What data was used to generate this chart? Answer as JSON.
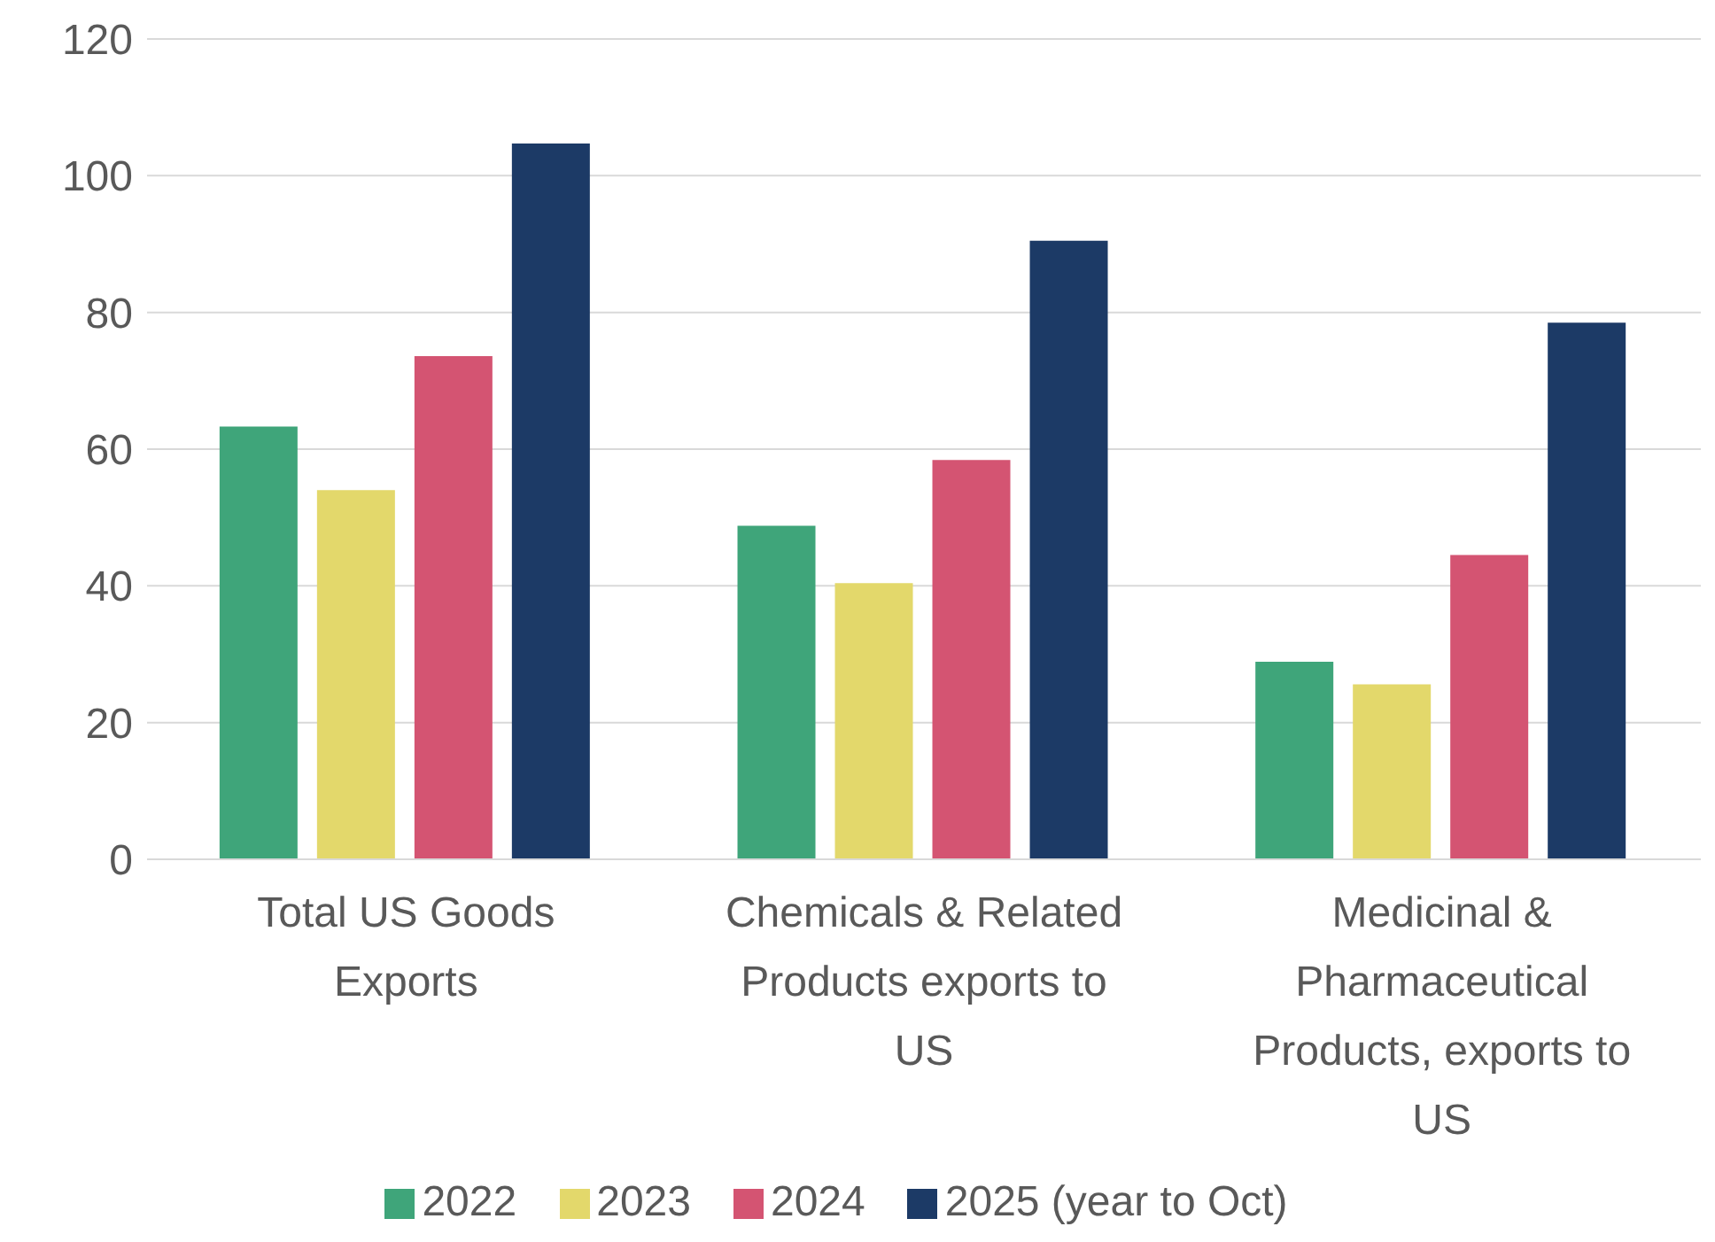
{
  "chart_data": {
    "type": "bar",
    "categories": [
      "Total US Goods Exports",
      "Chemicals & Related Products exports to US",
      "Medicinal & Pharmaceutical Products, exports to US"
    ],
    "series": [
      {
        "name": "2022",
        "color": "#3fa57a",
        "values": [
          63.3,
          48.8,
          28.9
        ]
      },
      {
        "name": "2023",
        "color": "#e3d86b",
        "values": [
          54,
          40.4,
          25.6
        ]
      },
      {
        "name": "2024",
        "color": "#d45472",
        "values": [
          73.6,
          58.4,
          44.5
        ]
      },
      {
        "name": "2025 (year to Oct)",
        "color": "#1c3a66",
        "values": [
          104.7,
          90.5,
          78.5
        ]
      }
    ],
    "ylim": [
      0,
      120
    ],
    "yticks": [
      0,
      20,
      40,
      60,
      80,
      100,
      120
    ],
    "grid": "y",
    "legend": "bottom"
  }
}
